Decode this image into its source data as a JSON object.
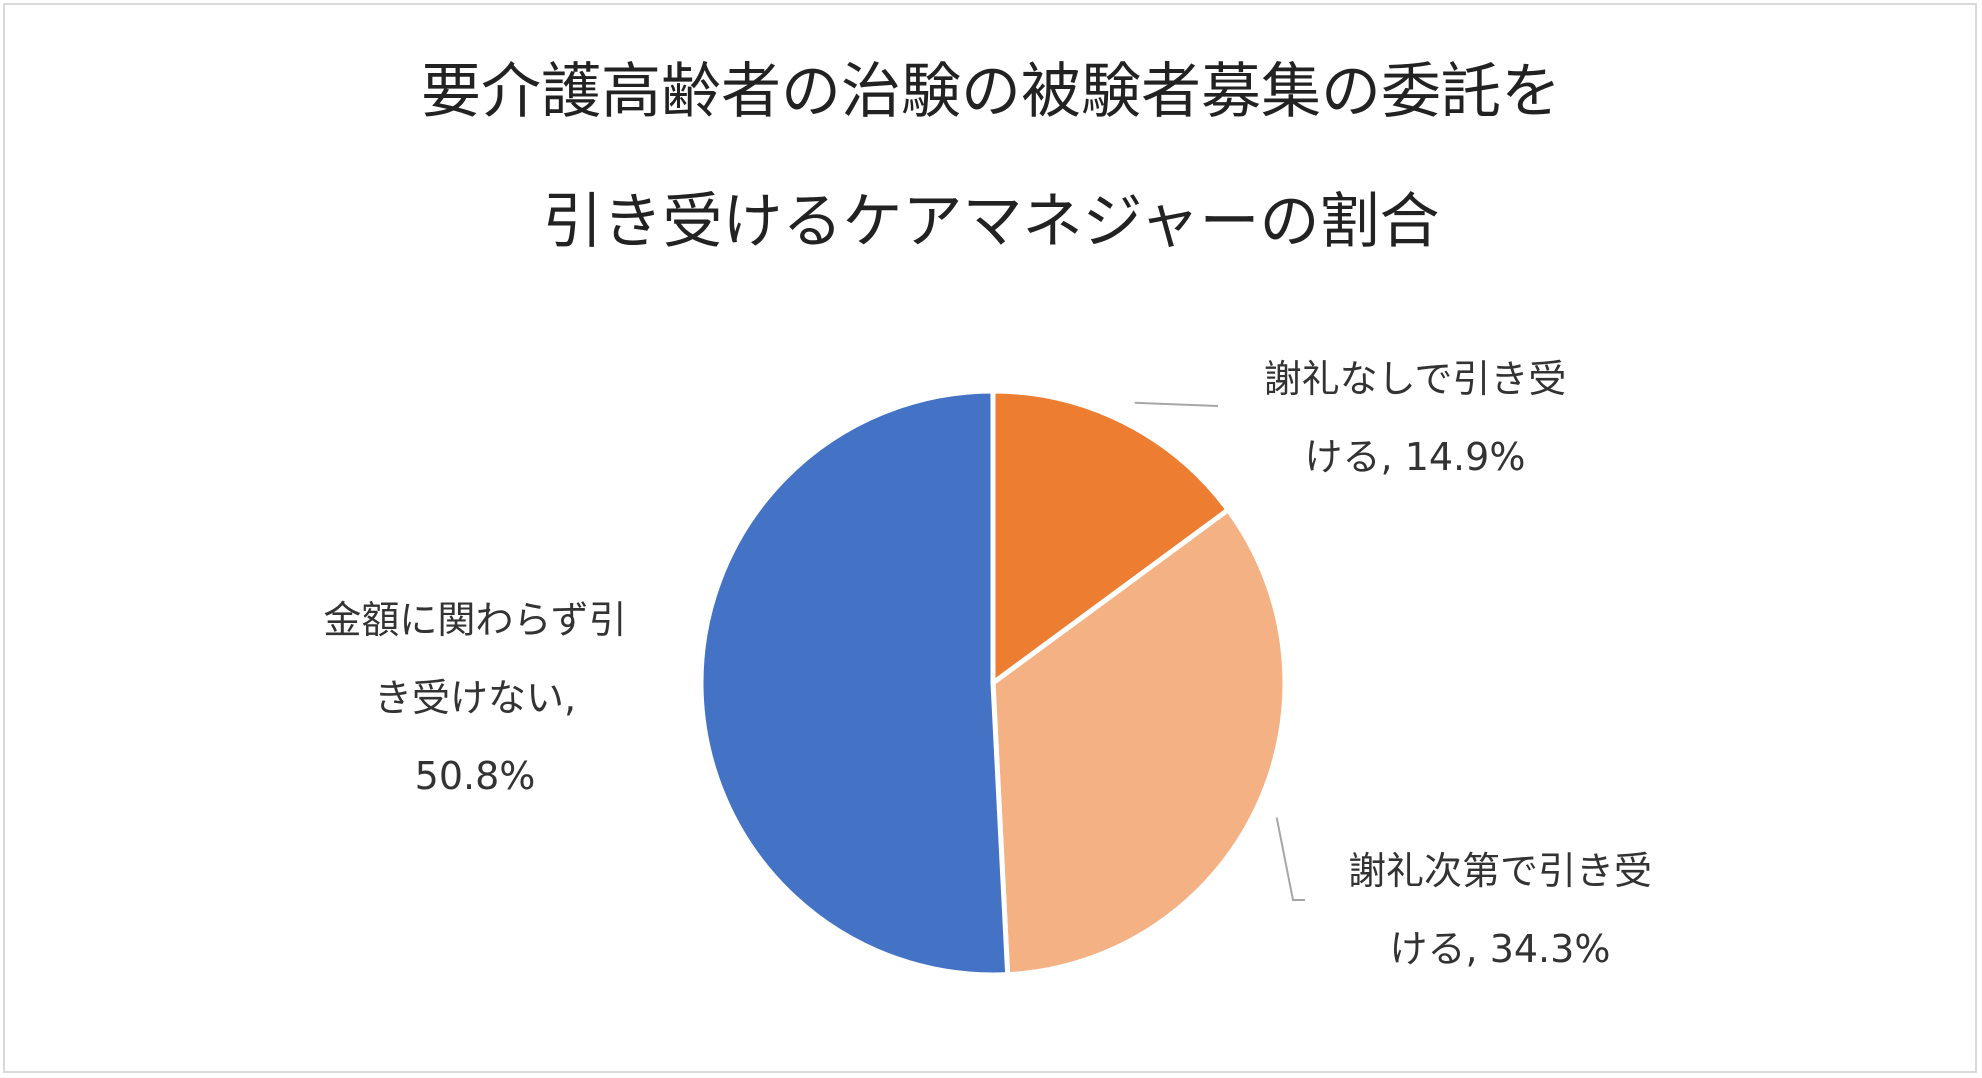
{
  "chart_data": {
    "type": "pie",
    "title": [
      "要介護高齢者の治験の被験者募集の委託を",
      "引き受けるケアマネジャーの割合"
    ],
    "slices": [
      {
        "label_lines": [
          "謝礼なしで引き受",
          "ける, 14.9%"
        ],
        "value": 14.9,
        "color": "#ED7D31"
      },
      {
        "label_lines": [
          "謝礼次第で引き受",
          "ける, 34.3%"
        ],
        "value": 34.3,
        "color": "#F4B183"
      },
      {
        "label_lines": [
          "金額に関わらず引",
          "き受けない,",
          "50.8%"
        ],
        "value": 50.8,
        "color": "#4472C4"
      }
    ],
    "start_angle_deg": 0,
    "direction": "clockwise",
    "legend": "none"
  }
}
